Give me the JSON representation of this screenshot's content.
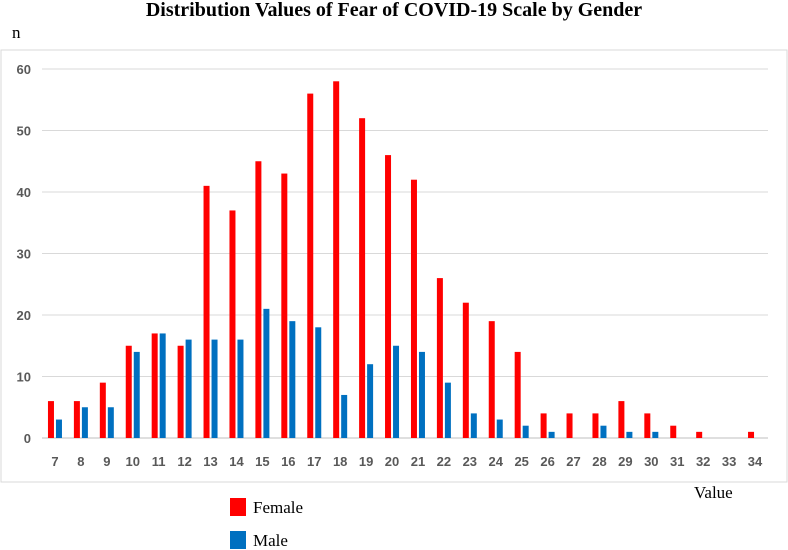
{
  "chart_data": {
    "type": "bar",
    "title": "Distribution Values of Fear of COVID-19 Scale by Gender",
    "ylabel": "n",
    "xlabel": "Value",
    "ylim": [
      0,
      60
    ],
    "yticks": [
      0,
      10,
      20,
      30,
      40,
      50,
      60
    ],
    "grid": true,
    "legend_position": "bottom-left",
    "categories": [
      "7",
      "8",
      "9",
      "10",
      "11",
      "12",
      "13",
      "14",
      "15",
      "16",
      "17",
      "18",
      "19",
      "20",
      "21",
      "22",
      "23",
      "24",
      "25",
      "26",
      "27",
      "28",
      "29",
      "30",
      "31",
      "32",
      "33",
      "34"
    ],
    "series": [
      {
        "name": "Female",
        "color": "#ff0000",
        "values": [
          6,
          6,
          9,
          15,
          17,
          15,
          41,
          37,
          45,
          43,
          56,
          58,
          52,
          46,
          42,
          26,
          22,
          19,
          14,
          4,
          4,
          4,
          6,
          4,
          2,
          1,
          0,
          1
        ]
      },
      {
        "name": "Male",
        "color": "#0070c0",
        "values": [
          3,
          5,
          5,
          14,
          17,
          16,
          16,
          16,
          21,
          19,
          18,
          7,
          12,
          15,
          14,
          9,
          4,
          3,
          2,
          1,
          0,
          2,
          1,
          1,
          0,
          0,
          0,
          0
        ]
      }
    ]
  }
}
